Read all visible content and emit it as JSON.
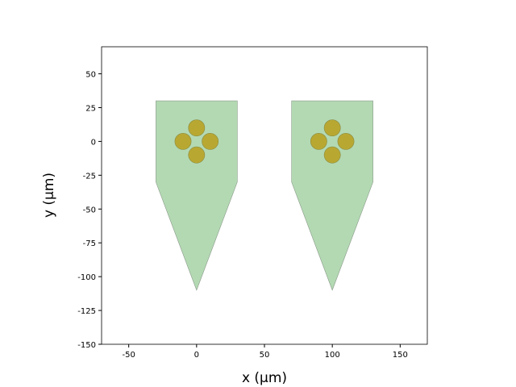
{
  "chart_data": {
    "type": "probe",
    "xlabel": "x (μm)",
    "ylabel": "y (μm)",
    "xlim": [
      -70,
      170
    ],
    "ylim": [
      -150,
      70
    ],
    "xticks": [
      -50,
      0,
      50,
      100,
      150
    ],
    "yticks": [
      -150,
      -125,
      -100,
      -75,
      -50,
      -25,
      0,
      25,
      50
    ],
    "contour_color": "#b3d9b3",
    "contact_color": "#b8a832",
    "contact_radius": 6,
    "probes": [
      {
        "contour": {
          "x": [
            -30,
            30,
            30,
            0,
            -30
          ],
          "y": [
            30,
            30,
            -30,
            -110,
            -30
          ]
        },
        "contacts": {
          "x": [
            0,
            -10,
            10,
            0
          ],
          "y": [
            10,
            0,
            0,
            -10
          ]
        }
      },
      {
        "contour": {
          "x": [
            70,
            130,
            130,
            100,
            70
          ],
          "y": [
            30,
            30,
            -30,
            -110,
            -30
          ]
        },
        "contacts": {
          "x": [
            100,
            90,
            110,
            100
          ],
          "y": [
            10,
            0,
            0,
            -10
          ]
        }
      }
    ]
  }
}
